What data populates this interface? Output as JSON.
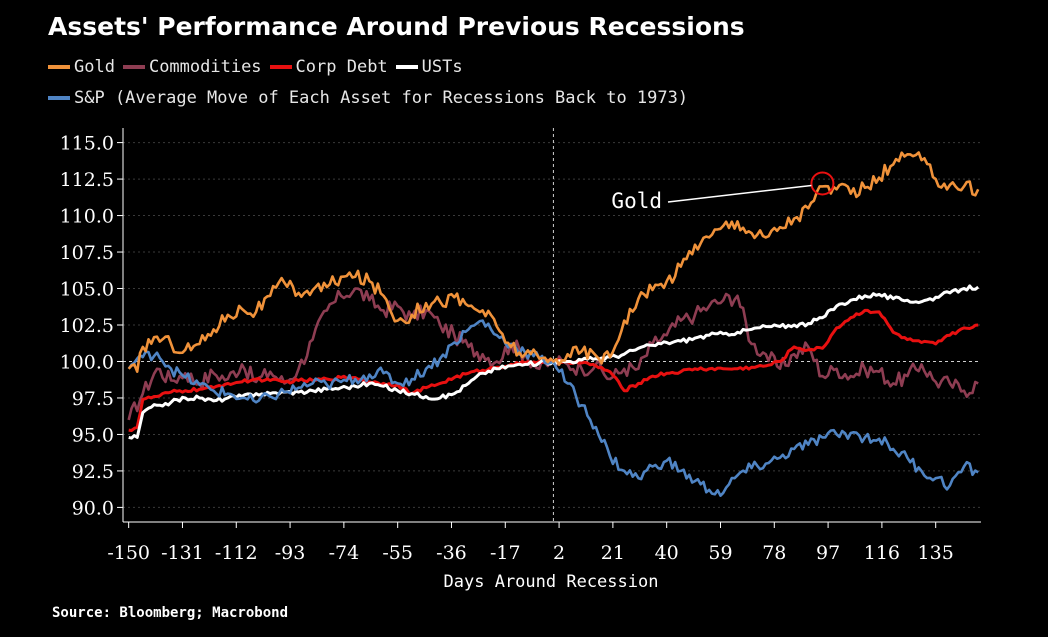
{
  "title": "Assets' Performance Around Previous Recessions",
  "legend": {
    "row1": [
      {
        "label": "Gold",
        "color": "#f0923a"
      },
      {
        "label": "Commodities",
        "color": "#8e3d52"
      },
      {
        "label": "Corp Debt",
        "color": "#e81010"
      },
      {
        "label": "USTs",
        "color": "#ffffff"
      }
    ],
    "row2": [
      {
        "label": "S&P (Average Move of Each Asset for Recessions Back to 1973)",
        "color": "#4f84c4"
      }
    ]
  },
  "source": "Source: Bloomberg; Macrobond",
  "annotation": {
    "text": "Gold",
    "x": 95,
    "y": 112.2,
    "circle_color": "#e81010"
  },
  "chart_data": {
    "type": "line",
    "title": "Assets' Performance Around Previous Recessions",
    "xlabel": "Days Around Recession",
    "ylabel": "",
    "xlim": [
      -152,
      151
    ],
    "ylim": [
      89.0,
      116.0
    ],
    "x_ticks": [
      -150,
      -131,
      -112,
      -93,
      -74,
      -55,
      -36,
      -17,
      2,
      21,
      40,
      59,
      78,
      97,
      116,
      135
    ],
    "y_ticks": [
      "115.0",
      "112.5",
      "110.0",
      "107.5",
      "105.0",
      "102.5",
      "100.0",
      "97.5",
      "95.0",
      "92.5",
      "90.0"
    ],
    "reference_x": 0,
    "reference_y": 100,
    "series": [
      {
        "name": "Commodities",
        "color": "#8e3d52",
        "x": [
          -150,
          -145,
          -140,
          -135,
          -130,
          -125,
          -120,
          -115,
          -110,
          -105,
          -100,
          -95,
          -90,
          -85,
          -80,
          -75,
          -70,
          -65,
          -60,
          -55,
          -50,
          -45,
          -40,
          -35,
          -30,
          -25,
          -20,
          -15,
          -10,
          -5,
          0,
          5,
          10,
          15,
          20,
          25,
          30,
          35,
          40,
          45,
          50,
          55,
          60,
          65,
          70,
          75,
          80,
          85,
          90,
          95,
          100,
          105,
          110,
          115,
          120,
          125,
          130,
          135,
          140,
          145,
          150
        ],
        "values": [
          96,
          97.8,
          99.5,
          98.7,
          99.2,
          98.5,
          99.2,
          98.8,
          99.8,
          98.6,
          99.3,
          98.5,
          99.5,
          101.5,
          103.5,
          104.5,
          105,
          104.2,
          103.5,
          103.8,
          103,
          103.5,
          102.5,
          101.8,
          101,
          100.5,
          100,
          101.2,
          100.5,
          99.5,
          100,
          99.8,
          99.5,
          99.8,
          98.8,
          99.5,
          99.5,
          101.2,
          101.8,
          102.8,
          103.2,
          103.8,
          104.2,
          104.5,
          101.2,
          100.5,
          99.5,
          100.5,
          101,
          99,
          99.5,
          99,
          99.5,
          99.3,
          98.5,
          99,
          99.8,
          98.6,
          98.5,
          98,
          98.5
        ]
      },
      {
        "name": "Corp Debt",
        "color": "#e81010",
        "x": [
          -150,
          -147,
          -145,
          -140,
          -135,
          -130,
          -125,
          -120,
          -115,
          -110,
          -105,
          -100,
          -95,
          -90,
          -85,
          -80,
          -75,
          -70,
          -65,
          -60,
          -55,
          -50,
          -45,
          -40,
          -35,
          -30,
          -25,
          -20,
          -15,
          -10,
          -5,
          0,
          5,
          10,
          15,
          20,
          25,
          30,
          35,
          40,
          45,
          50,
          55,
          60,
          65,
          70,
          75,
          80,
          85,
          90,
          95,
          100,
          105,
          110,
          115,
          120,
          125,
          130,
          135,
          140,
          145,
          150
        ],
        "values": [
          95.3,
          95.5,
          97.4,
          97.6,
          97.9,
          98,
          98.1,
          98.2,
          98.5,
          98.6,
          98.8,
          98.7,
          98.6,
          98.7,
          98.7,
          98.8,
          98.9,
          98.9,
          98.6,
          98.5,
          98.4,
          97.8,
          98.2,
          98.5,
          98.9,
          99.2,
          99.4,
          99.6,
          99.8,
          99.9,
          100,
          100,
          100,
          99.9,
          99.7,
          99.3,
          98,
          98.5,
          99.0,
          99.2,
          99.3,
          99.5,
          99.5,
          99.5,
          99.5,
          99.6,
          99.7,
          100,
          101,
          100.8,
          100.9,
          102.3,
          103.0,
          103.5,
          103.4,
          102,
          101.5,
          101.3,
          101.2,
          101.8,
          102.3,
          102.5
        ]
      },
      {
        "name": "USTs",
        "color": "#ffffff",
        "x": [
          -150,
          -147,
          -145,
          -140,
          -135,
          -130,
          -125,
          -120,
          -115,
          -110,
          -105,
          -100,
          -95,
          -90,
          -85,
          -80,
          -75,
          -70,
          -65,
          -60,
          -55,
          -50,
          -45,
          -40,
          -35,
          -30,
          -25,
          -20,
          -15,
          -10,
          -5,
          0,
          5,
          10,
          15,
          20,
          25,
          30,
          35,
          40,
          45,
          50,
          55,
          60,
          65,
          70,
          75,
          80,
          85,
          90,
          95,
          100,
          105,
          110,
          115,
          120,
          125,
          130,
          135,
          140,
          145,
          150
        ],
        "values": [
          94.8,
          94.8,
          96.5,
          97,
          97.2,
          97.5,
          97.5,
          97.3,
          97.5,
          97.6,
          97.8,
          97.8,
          97.9,
          97.9,
          98,
          98.1,
          98.2,
          98.3,
          98.5,
          98.3,
          98,
          97.8,
          97.6,
          97.5,
          97.8,
          98.5,
          99.2,
          99.5,
          99.7,
          99.8,
          99.9,
          100,
          100,
          100.1,
          100.2,
          100.3,
          100.5,
          100.9,
          101.1,
          101.3,
          101.4,
          101.6,
          101.8,
          101.9,
          102,
          102.2,
          102.4,
          102.4,
          102.5,
          102.6,
          103,
          103.8,
          104.2,
          104.5,
          104.6,
          104.3,
          104.2,
          104.1,
          104.4,
          104.7,
          105,
          105.1
        ]
      },
      {
        "name": "S&P",
        "color": "#4f84c4",
        "x": [
          -150,
          -147,
          -145,
          -140,
          -135,
          -130,
          -125,
          -120,
          -115,
          -110,
          -105,
          -100,
          -95,
          -90,
          -85,
          -80,
          -75,
          -70,
          -65,
          -60,
          -55,
          -50,
          -45,
          -40,
          -35,
          -30,
          -25,
          -20,
          -15,
          -10,
          -5,
          0,
          5,
          10,
          15,
          20,
          25,
          30,
          35,
          40,
          45,
          50,
          55,
          60,
          65,
          70,
          75,
          80,
          85,
          90,
          95,
          100,
          105,
          110,
          115,
          120,
          125,
          130,
          135,
          140,
          145,
          150
        ],
        "values": [
          99.5,
          100.2,
          100.3,
          100.6,
          99.5,
          98.9,
          98.4,
          98,
          97.8,
          97.5,
          97.2,
          97.6,
          97.9,
          98.2,
          98.5,
          98.4,
          98.6,
          98.8,
          99.1,
          99.2,
          98.5,
          98.8,
          99.5,
          100.2,
          101.3,
          102.2,
          102.8,
          101.8,
          101.2,
          100.6,
          100.2,
          100,
          98.5,
          97,
          95.5,
          93.5,
          92.5,
          92,
          92.8,
          93.2,
          92.5,
          91.8,
          91.2,
          91,
          92.2,
          92.7,
          93,
          93.4,
          94,
          94.3,
          94.8,
          95,
          95.1,
          94.8,
          94.7,
          94,
          93.4,
          92.5,
          92,
          91.5,
          92.8,
          92.4
        ]
      },
      {
        "name": "Gold",
        "color": "#f0923a",
        "x": [
          -150,
          -147,
          -145,
          -140,
          -135,
          -130,
          -125,
          -120,
          -115,
          -110,
          -105,
          -100,
          -95,
          -90,
          -85,
          -80,
          -75,
          -70,
          -65,
          -60,
          -55,
          -50,
          -45,
          -40,
          -35,
          -30,
          -25,
          -20,
          -15,
          -10,
          -5,
          0,
          5,
          10,
          15,
          20,
          25,
          30,
          35,
          40,
          45,
          50,
          55,
          60,
          65,
          70,
          75,
          80,
          85,
          90,
          95,
          100,
          105,
          110,
          115,
          120,
          125,
          130,
          135,
          140,
          145,
          150
        ],
        "values": [
          99.5,
          99.3,
          101,
          101.7,
          101.2,
          100.8,
          101.2,
          102.2,
          103.2,
          103.6,
          103.4,
          104.5,
          105.4,
          104.7,
          104.9,
          105.1,
          105.8,
          105.8,
          105.5,
          104.5,
          102.8,
          103.2,
          104,
          104.1,
          104.4,
          103.8,
          103.5,
          102.4,
          101,
          100.5,
          100.2,
          100,
          100.5,
          100.7,
          100.4,
          100.3,
          102.8,
          104.3,
          104.9,
          105.5,
          106.5,
          108,
          108.5,
          109.3,
          109.6,
          108.8,
          108.5,
          109.2,
          109.8,
          110.5,
          112,
          111.8,
          111.5,
          111.9,
          112.6,
          113.5,
          114.2,
          113.8,
          112.5,
          112.1,
          112,
          111.8
        ]
      }
    ]
  }
}
